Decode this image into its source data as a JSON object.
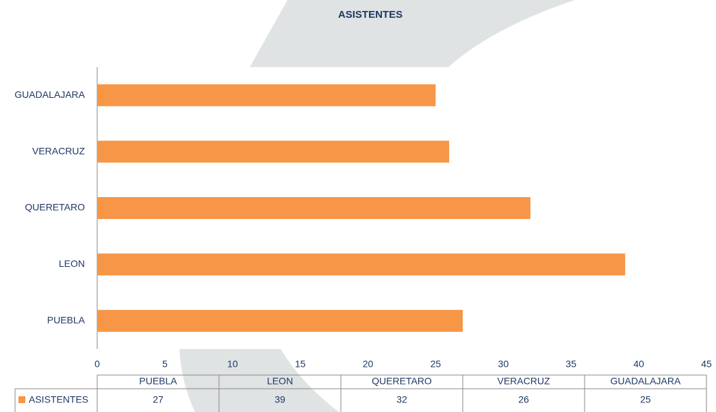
{
  "chart_data": {
    "type": "hbar",
    "title": "ASISTENTES",
    "categories": [
      "PUEBLA",
      "LEON",
      "QUERETARO",
      "VERACRUZ",
      "GUADALAJARA"
    ],
    "series": [
      {
        "name": "ASISTENTES",
        "color": "#f79646",
        "values": [
          27,
          39,
          32,
          26,
          25
        ]
      }
    ],
    "xlim": [
      0,
      45
    ],
    "xticks": [
      0,
      5,
      10,
      15,
      20,
      25,
      30,
      35,
      40,
      45
    ],
    "grid": false,
    "data_table": true
  }
}
